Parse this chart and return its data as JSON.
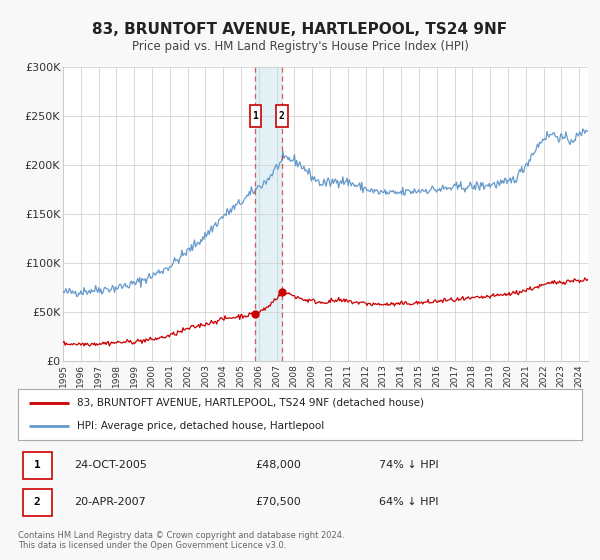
{
  "title": "83, BRUNTOFT AVENUE, HARTLEPOOL, TS24 9NF",
  "subtitle": "Price paid vs. HM Land Registry's House Price Index (HPI)",
  "background_color": "#f8f8f8",
  "plot_bg_color": "#ffffff",
  "hpi_color": "#6699cc",
  "price_color": "#cc0000",
  "ylim": [
    0,
    300000
  ],
  "yticks": [
    0,
    50000,
    100000,
    150000,
    200000,
    250000,
    300000
  ],
  "ytick_labels": [
    "£0",
    "£50K",
    "£100K",
    "£150K",
    "£200K",
    "£250K",
    "£300K"
  ],
  "xmin": 1995.0,
  "xmax": 2024.5,
  "sale1_x": 2005.81,
  "sale1_y": 48000,
  "sale2_x": 2007.3,
  "sale2_y": 70500,
  "sale1_label": "24-OCT-2005",
  "sale1_price": "£48,000",
  "sale1_hpi": "74% ↓ HPI",
  "sale2_label": "20-APR-2007",
  "sale2_price": "£70,500",
  "sale2_hpi": "64% ↓ HPI",
  "legend_line1": "83, BRUNTOFT AVENUE, HARTLEPOOL, TS24 9NF (detached house)",
  "legend_line2": "HPI: Average price, detached house, Hartlepool",
  "footnote": "Contains HM Land Registry data © Crown copyright and database right 2024.\nThis data is licensed under the Open Government Licence v3.0.",
  "xticks": [
    1995,
    1996,
    1997,
    1998,
    1999,
    2000,
    2001,
    2002,
    2003,
    2004,
    2005,
    2006,
    2007,
    2008,
    2009,
    2010,
    2011,
    2012,
    2013,
    2014,
    2015,
    2016,
    2017,
    2018,
    2019,
    2020,
    2021,
    2022,
    2023,
    2024
  ],
  "hpi_anchors_x": [
    1995.0,
    1996.0,
    1997.0,
    1998.0,
    1999.0,
    2000.0,
    2001.0,
    2002.0,
    2003.0,
    2004.0,
    2005.0,
    2006.0,
    2006.5,
    2007.0,
    2007.5,
    2008.0,
    2008.5,
    2009.0,
    2009.5,
    2010.0,
    2010.5,
    2011.0,
    2011.5,
    2012.0,
    2012.5,
    2013.0,
    2013.5,
    2014.0,
    2014.5,
    2015.0,
    2015.5,
    2016.0,
    2016.5,
    2017.0,
    2017.5,
    2018.0,
    2018.5,
    2019.0,
    2019.5,
    2020.0,
    2020.5,
    2021.0,
    2021.5,
    2022.0,
    2022.5,
    2023.0,
    2023.5,
    2024.0,
    2024.5
  ],
  "hpi_anchors_y": [
    70000,
    71000,
    73000,
    75000,
    79000,
    87000,
    97000,
    112000,
    128000,
    148000,
    162000,
    178000,
    185000,
    198000,
    207000,
    205000,
    198000,
    188000,
    181000,
    182000,
    185000,
    183000,
    179000,
    176000,
    173000,
    172000,
    171000,
    172000,
    173000,
    174000,
    175000,
    175000,
    176000,
    177000,
    178000,
    178000,
    179000,
    180000,
    181000,
    182000,
    188000,
    200000,
    215000,
    228000,
    232000,
    228000,
    225000,
    230000,
    238000
  ],
  "price_anchors_x": [
    1995.0,
    1996.0,
    1997.0,
    1998.0,
    1999.0,
    2000.0,
    2001.0,
    2002.0,
    2003.0,
    2004.0,
    2005.0,
    2005.81,
    2006.5,
    2007.3,
    2007.8,
    2008.5,
    2009.5,
    2010.5,
    2011.5,
    2012.5,
    2013.5,
    2014.5,
    2015.5,
    2016.5,
    2017.5,
    2018.5,
    2019.5,
    2020.5,
    2021.5,
    2022.5,
    2023.5,
    2024.5
  ],
  "price_anchors_y": [
    18000,
    17500,
    18000,
    19000,
    20000,
    22000,
    26000,
    33000,
    38000,
    43000,
    46000,
    48000,
    55000,
    70500,
    68000,
    63000,
    60000,
    62000,
    60000,
    58000,
    58000,
    59000,
    60000,
    62000,
    63000,
    65000,
    67000,
    70000,
    75000,
    80000,
    82000,
    83000
  ]
}
